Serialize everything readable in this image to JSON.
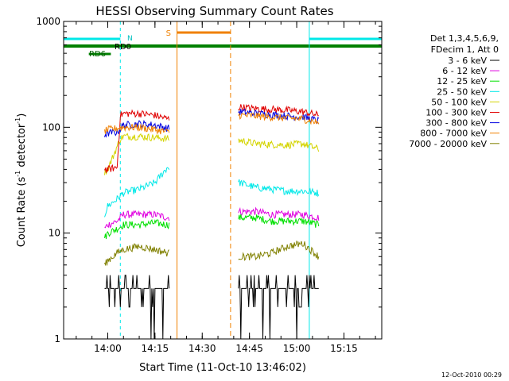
{
  "chart_data": {
    "type": "line",
    "title": "HESSI Observing Summary Count Rates",
    "xlabel": "Start Time (11-Oct-10 13:46:02)",
    "ylabel_main": "Count Rate (s",
    "ylabel_sup1": "-1",
    "ylabel_mid": " detector",
    "ylabel_sup2": "-1",
    "ylabel_end": ")",
    "y_scale": "log",
    "ylim": [
      1,
      1000
    ],
    "xlim": [
      "13:46",
      "15:27"
    ],
    "x_ticks": [
      "14:00",
      "14:15",
      "14:30",
      "14:45",
      "15:00",
      "15:15"
    ],
    "y_ticks": [
      "1",
      "10",
      "100",
      "1000"
    ],
    "legend_header": [
      "Det 1,3,4,5,6,9,",
      "FDecim 1, Att 0"
    ],
    "footer_timestamp": "12-Oct-2010 00:29",
    "flag_labels": {
      "saa": "S",
      "night": "N",
      "rd0": "RD0",
      "rd6": "RD6"
    },
    "flags": {
      "night_intervals": [
        [
          "13:46",
          "14:04"
        ],
        [
          "15:04",
          "15:27"
        ]
      ],
      "saa_interval": [
        "14:22",
        "14:39"
      ],
      "rd0_interval": [
        "13:46",
        "15:27"
      ],
      "rd6_interval": [
        "13:54",
        "14:01"
      ]
    },
    "series": [
      {
        "name": "3 - 6 keV",
        "color": "#000000",
        "points": [
          [
            "13:59",
            1.0
          ],
          [
            "14:00",
            2.9
          ],
          [
            "14:05",
            3.0
          ],
          [
            "14:10",
            2.8
          ],
          [
            "14:15",
            3.0
          ],
          [
            "14:19",
            2.8
          ],
          [
            "14:42",
            2.9
          ],
          [
            "14:47",
            2.8
          ],
          [
            "14:52",
            3.0
          ],
          [
            "14:57",
            2.9
          ],
          [
            "15:02",
            2.8
          ],
          [
            "15:07",
            3.0
          ]
        ]
      },
      {
        "name": "6 - 12 keV",
        "color": "#e000e0",
        "points": [
          [
            "13:59",
            11
          ],
          [
            "14:00",
            12
          ],
          [
            "14:03",
            13
          ],
          [
            "14:05",
            15
          ],
          [
            "14:10",
            15
          ],
          [
            "14:15",
            15
          ],
          [
            "14:19",
            14
          ],
          [
            "14:42",
            16
          ],
          [
            "14:47",
            16
          ],
          [
            "14:52",
            15
          ],
          [
            "14:57",
            15
          ],
          [
            "15:02",
            15
          ],
          [
            "15:07",
            14
          ]
        ]
      },
      {
        "name": "12 - 25 keV",
        "color": "#00e000",
        "points": [
          [
            "13:59",
            9
          ],
          [
            "14:00",
            10
          ],
          [
            "14:03",
            11
          ],
          [
            "14:05",
            12
          ],
          [
            "14:10",
            12
          ],
          [
            "14:15",
            12.5
          ],
          [
            "14:19",
            12
          ],
          [
            "14:42",
            14
          ],
          [
            "14:47",
            14
          ],
          [
            "14:52",
            13
          ],
          [
            "14:57",
            13
          ],
          [
            "15:02",
            13
          ],
          [
            "15:07",
            12
          ]
        ]
      },
      {
        "name": "25 - 50 keV",
        "color": "#00e8e8",
        "points": [
          [
            "13:59",
            15
          ],
          [
            "14:00",
            18
          ],
          [
            "14:03",
            21
          ],
          [
            "14:05",
            24
          ],
          [
            "14:10",
            26
          ],
          [
            "14:15",
            30
          ],
          [
            "14:19",
            42
          ],
          [
            "14:42",
            30
          ],
          [
            "14:47",
            27
          ],
          [
            "14:52",
            26
          ],
          [
            "14:57",
            25
          ],
          [
            "15:02",
            25
          ],
          [
            "15:07",
            24
          ]
        ]
      },
      {
        "name": "50 - 100 keV",
        "color": "#d4d400",
        "points": [
          [
            "13:59",
            38
          ],
          [
            "14:00",
            40
          ],
          [
            "14:04",
            78
          ],
          [
            "14:05",
            82
          ],
          [
            "14:10",
            82
          ],
          [
            "14:15",
            80
          ],
          [
            "14:19",
            78
          ],
          [
            "14:42",
            75
          ],
          [
            "14:47",
            70
          ],
          [
            "14:52",
            69
          ],
          [
            "14:57",
            68
          ],
          [
            "15:02",
            70
          ],
          [
            "15:07",
            62
          ]
        ]
      },
      {
        "name": "100 - 300 keV",
        "color": "#e00000",
        "points": [
          [
            "13:59",
            40
          ],
          [
            "14:00",
            40
          ],
          [
            "14:03",
            42
          ],
          [
            "14:04",
            130
          ],
          [
            "14:05",
            135
          ],
          [
            "14:10",
            135
          ],
          [
            "14:15",
            130
          ],
          [
            "14:19",
            120
          ],
          [
            "14:42",
            155
          ],
          [
            "14:47",
            150
          ],
          [
            "14:52",
            148
          ],
          [
            "14:57",
            145
          ],
          [
            "15:02",
            140
          ],
          [
            "15:07",
            130
          ]
        ]
      },
      {
        "name": "300 - 800 keV",
        "color": "#0000e0",
        "points": [
          [
            "13:59",
            85
          ],
          [
            "14:00",
            88
          ],
          [
            "14:03",
            90
          ],
          [
            "14:05",
            105
          ],
          [
            "14:10",
            108
          ],
          [
            "14:15",
            105
          ],
          [
            "14:19",
            98
          ],
          [
            "14:42",
            140
          ],
          [
            "14:47",
            135
          ],
          [
            "14:52",
            132
          ],
          [
            "14:57",
            128
          ],
          [
            "15:02",
            125
          ],
          [
            "15:07",
            115
          ]
        ]
      },
      {
        "name": "800 - 7000 keV",
        "color": "#f08000",
        "points": [
          [
            "13:59",
            92
          ],
          [
            "14:00",
            95
          ],
          [
            "14:03",
            98
          ],
          [
            "14:05",
            100
          ],
          [
            "14:10",
            100
          ],
          [
            "14:15",
            95
          ],
          [
            "14:19",
            90
          ],
          [
            "14:42",
            130
          ],
          [
            "14:47",
            128
          ],
          [
            "14:52",
            125
          ],
          [
            "14:57",
            122
          ],
          [
            "15:02",
            120
          ],
          [
            "15:07",
            110
          ]
        ]
      },
      {
        "name": "7000 - 20000 keV",
        "color": "#808000",
        "points": [
          [
            "13:59",
            5
          ],
          [
            "14:00",
            5.5
          ],
          [
            "14:03",
            6.5
          ],
          [
            "14:05",
            7
          ],
          [
            "14:10",
            7.5
          ],
          [
            "14:15",
            7
          ],
          [
            "14:19",
            6.5
          ],
          [
            "14:42",
            6
          ],
          [
            "14:47",
            6
          ],
          [
            "14:52",
            6.5
          ],
          [
            "14:57",
            7.5
          ],
          [
            "15:02",
            8
          ],
          [
            "15:07",
            6
          ]
        ]
      }
    ]
  }
}
